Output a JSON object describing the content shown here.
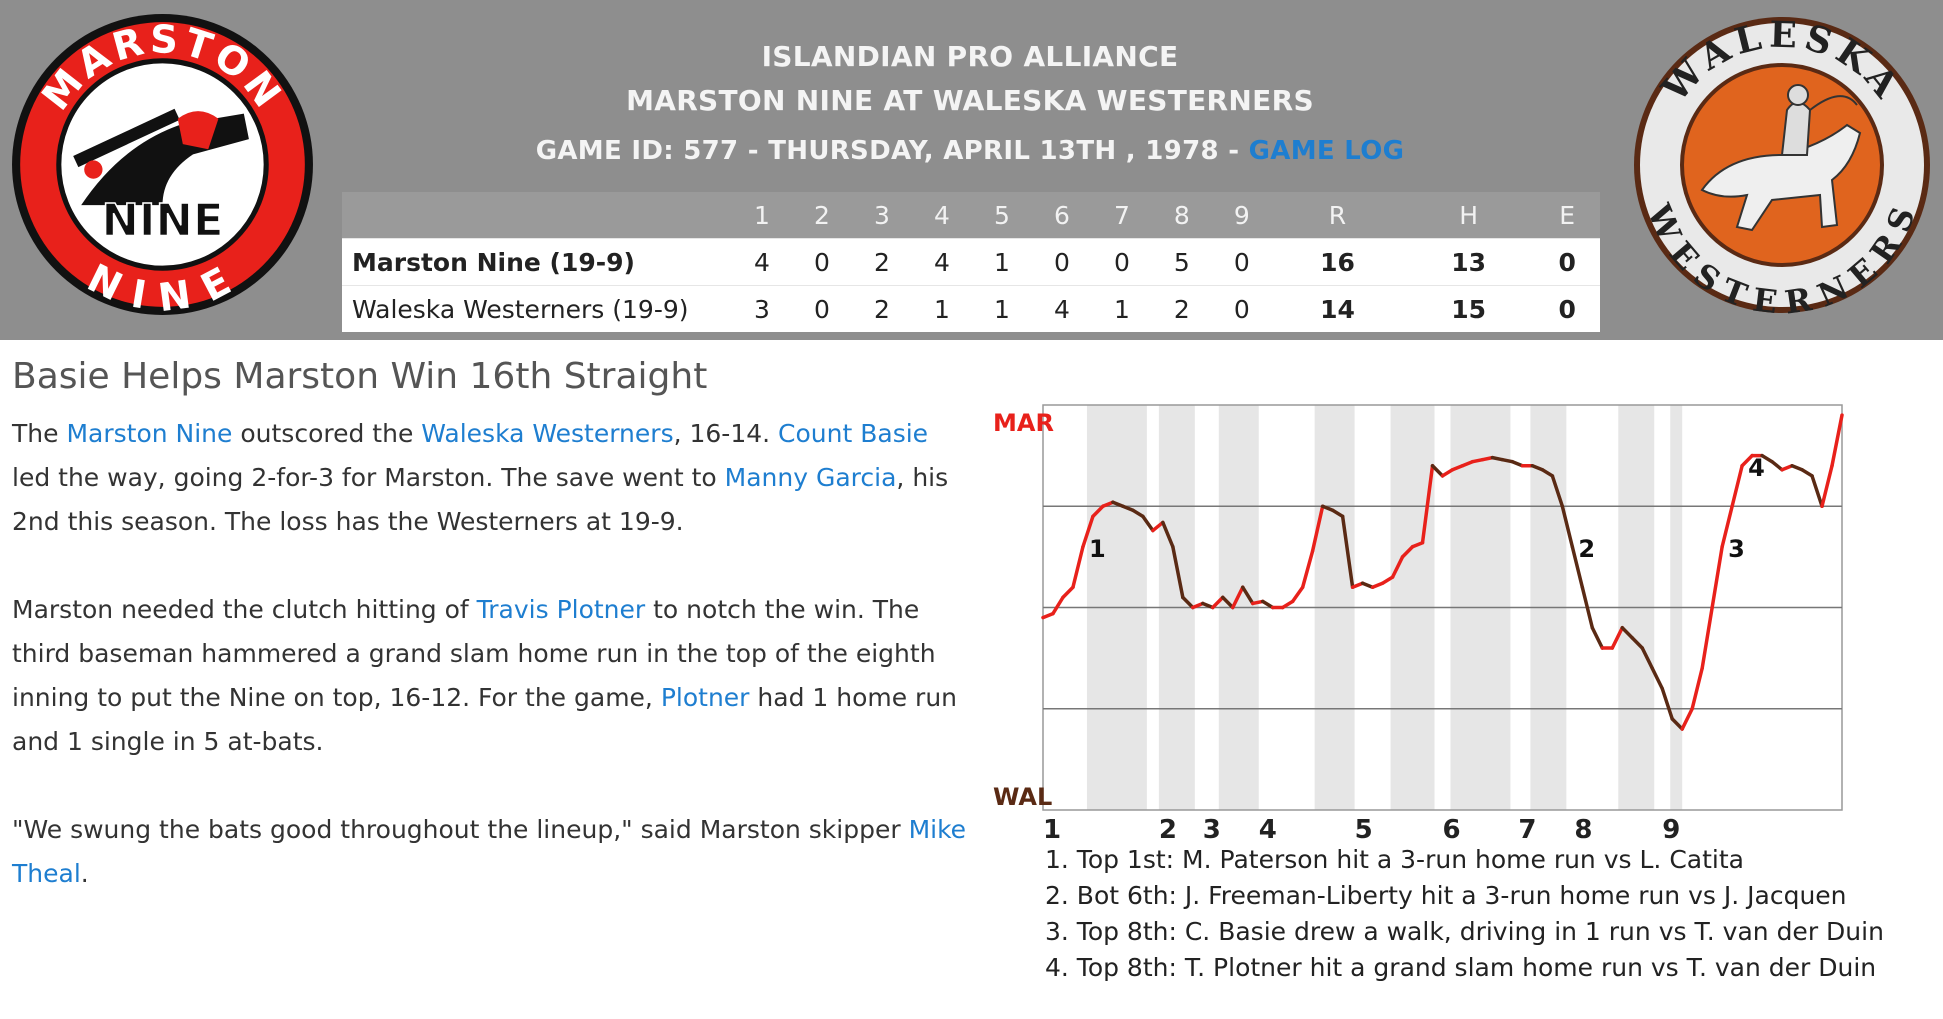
{
  "header": {
    "league": "ISLANDIAN PRO ALLIANCE",
    "matchup": "MARSTON NINE AT WALESKA WESTERNERS",
    "game_info": "GAME ID: 577 - THURSDAY, APRIL 13TH , 1978 - ",
    "game_log_label": "GAME LOG"
  },
  "logos": {
    "away": {
      "top_text": "MARSTON",
      "center_text": "NINE",
      "bottom_text": "NINE",
      "ring_color": "#e8211b"
    },
    "home": {
      "top_text": "WALESKA",
      "bottom_text": "WESTERNERS",
      "color": "#e0641e"
    }
  },
  "linescore": {
    "headers": [
      "",
      "1",
      "2",
      "3",
      "4",
      "5",
      "6",
      "7",
      "8",
      "9",
      "R",
      "H",
      "E"
    ],
    "rows": [
      {
        "team": "Marston Nine (19-9)",
        "innings": [
          "4",
          "0",
          "2",
          "4",
          "1",
          "0",
          "0",
          "5",
          "0"
        ],
        "R": "16",
        "H": "13",
        "E": "0"
      },
      {
        "team": "Waleska Westerners (19-9)",
        "innings": [
          "3",
          "0",
          "2",
          "1",
          "1",
          "4",
          "1",
          "2",
          "0"
        ],
        "R": "14",
        "H": "15",
        "E": "0"
      }
    ]
  },
  "article": {
    "headline": "Basie Helps Marston Win 16th Straight",
    "p1": {
      "a": "The ",
      "b": "Marston Nine",
      "c": " outscored the ",
      "d": "Waleska Westerners",
      "e": ", 16-14. ",
      "f": "Count Basie",
      "g": " led the way, going 2-for-3 for Marston. The save went to ",
      "h": "Manny Garcia",
      "i": ", his 2nd this season. The loss has the Westerners at 19-9."
    },
    "p2": {
      "a": "Marston needed the clutch hitting of ",
      "b": "Travis Plotner",
      "c": " to notch the win. The third baseman hammered a grand slam home run in the top of the eighth inning to put the Nine on top, 16-12. For the game, ",
      "d": "Plotner",
      "e": " had 1 home run and 1 single in 5 at-bats."
    },
    "p3": {
      "a": "\"We swung the bats good throughout the lineup,\" said Marston skipper ",
      "b": "Mike Theal",
      "c": "."
    }
  },
  "chart_data": {
    "type": "line",
    "label_top": "MAR",
    "label_bottom": "WAL",
    "colors": {
      "mar": "#e8211b",
      "wal": "#5a2a14"
    },
    "inning_labels": [
      "1",
      "2",
      "3",
      "4",
      "5",
      "6",
      "7",
      "8",
      "9"
    ],
    "ylim": [
      -1,
      1
    ],
    "grid": true,
    "series": [
      {
        "values": [
          -0.05,
          -0.03,
          0.05,
          0.1,
          0.3,
          0.45,
          0.5,
          0.52,
          0.5,
          0.48,
          0.45,
          0.38,
          0.42,
          0.3,
          0.05,
          0.0,
          0.02,
          0.0,
          0.05,
          0.0,
          0.1,
          0.02,
          0.03,
          0.0,
          0.0,
          0.03,
          0.1,
          0.28,
          0.5,
          0.48,
          0.45,
          0.1,
          0.12,
          0.1,
          0.12,
          0.15,
          0.25,
          0.3,
          0.32,
          0.7,
          0.65,
          0.68,
          0.7,
          0.72,
          0.73,
          0.74,
          0.73,
          0.72,
          0.7,
          0.7,
          0.68,
          0.65,
          0.5,
          0.3,
          0.1,
          -0.1,
          -0.2,
          -0.2,
          -0.1,
          -0.15,
          -0.2,
          -0.3,
          -0.4,
          -0.55,
          -0.6,
          -0.5,
          -0.3,
          0.0,
          0.3,
          0.5,
          0.7,
          0.75,
          0.75,
          0.72,
          0.68,
          0.7,
          0.68,
          0.65,
          0.5,
          0.7,
          0.95
        ]
      }
    ],
    "markers": [
      {
        "label": "1",
        "index": 4
      },
      {
        "label": "2",
        "index": 53
      },
      {
        "label": "3",
        "index": 68
      },
      {
        "label": "4",
        "index": 70
      }
    ]
  },
  "notes": [
    "1. Top 1st: M. Paterson hit a 3-run home run vs L. Catita",
    "2. Bot 6th: J. Freeman-Liberty hit a 3-run home run vs J. Jacquen",
    "3. Top 8th: C. Basie drew a walk, driving in 1 run vs T. van der Duin",
    "4. Top 8th: T. Plotner hit a grand slam home run vs T. van der Duin"
  ]
}
